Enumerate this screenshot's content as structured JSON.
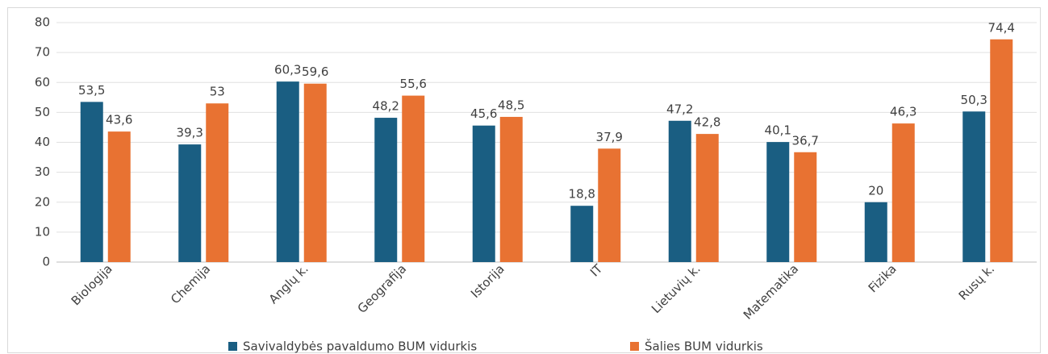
{
  "chart_data": {
    "type": "bar",
    "categories": [
      "Biologija",
      "Chemija",
      "Anglų k.",
      "Geografija",
      "Istorija",
      "IT",
      "Lietuvių k.",
      "Matematika",
      "Fizika",
      "Rusų k."
    ],
    "series": [
      {
        "name": "Savivaldybės pavaldumo BUM vidurkis",
        "color": "#1a5e82",
        "values": [
          53.5,
          39.3,
          60.3,
          48.2,
          45.6,
          18.8,
          47.2,
          40.1,
          20,
          50.3
        ],
        "value_labels": [
          "53,5",
          "39,3",
          "60,3",
          "48,2",
          "45,6",
          "18,8",
          "47,2",
          "40,1",
          "20",
          "50,3"
        ]
      },
      {
        "name": "Šalies BUM vidurkis",
        "color": "#e87232",
        "values": [
          43.6,
          53,
          59.6,
          55.6,
          48.5,
          37.9,
          42.8,
          36.7,
          46.3,
          74.4
        ],
        "value_labels": [
          "43,6",
          "53",
          "59,6",
          "55,6",
          "48,5",
          "37,9",
          "42,8",
          "36,7",
          "46,3",
          "74,4"
        ]
      }
    ],
    "ylim": [
      0,
      80
    ],
    "yticks": [
      0,
      10,
      20,
      30,
      40,
      50,
      60,
      70,
      80
    ],
    "grid": true,
    "legend": "bottom"
  }
}
